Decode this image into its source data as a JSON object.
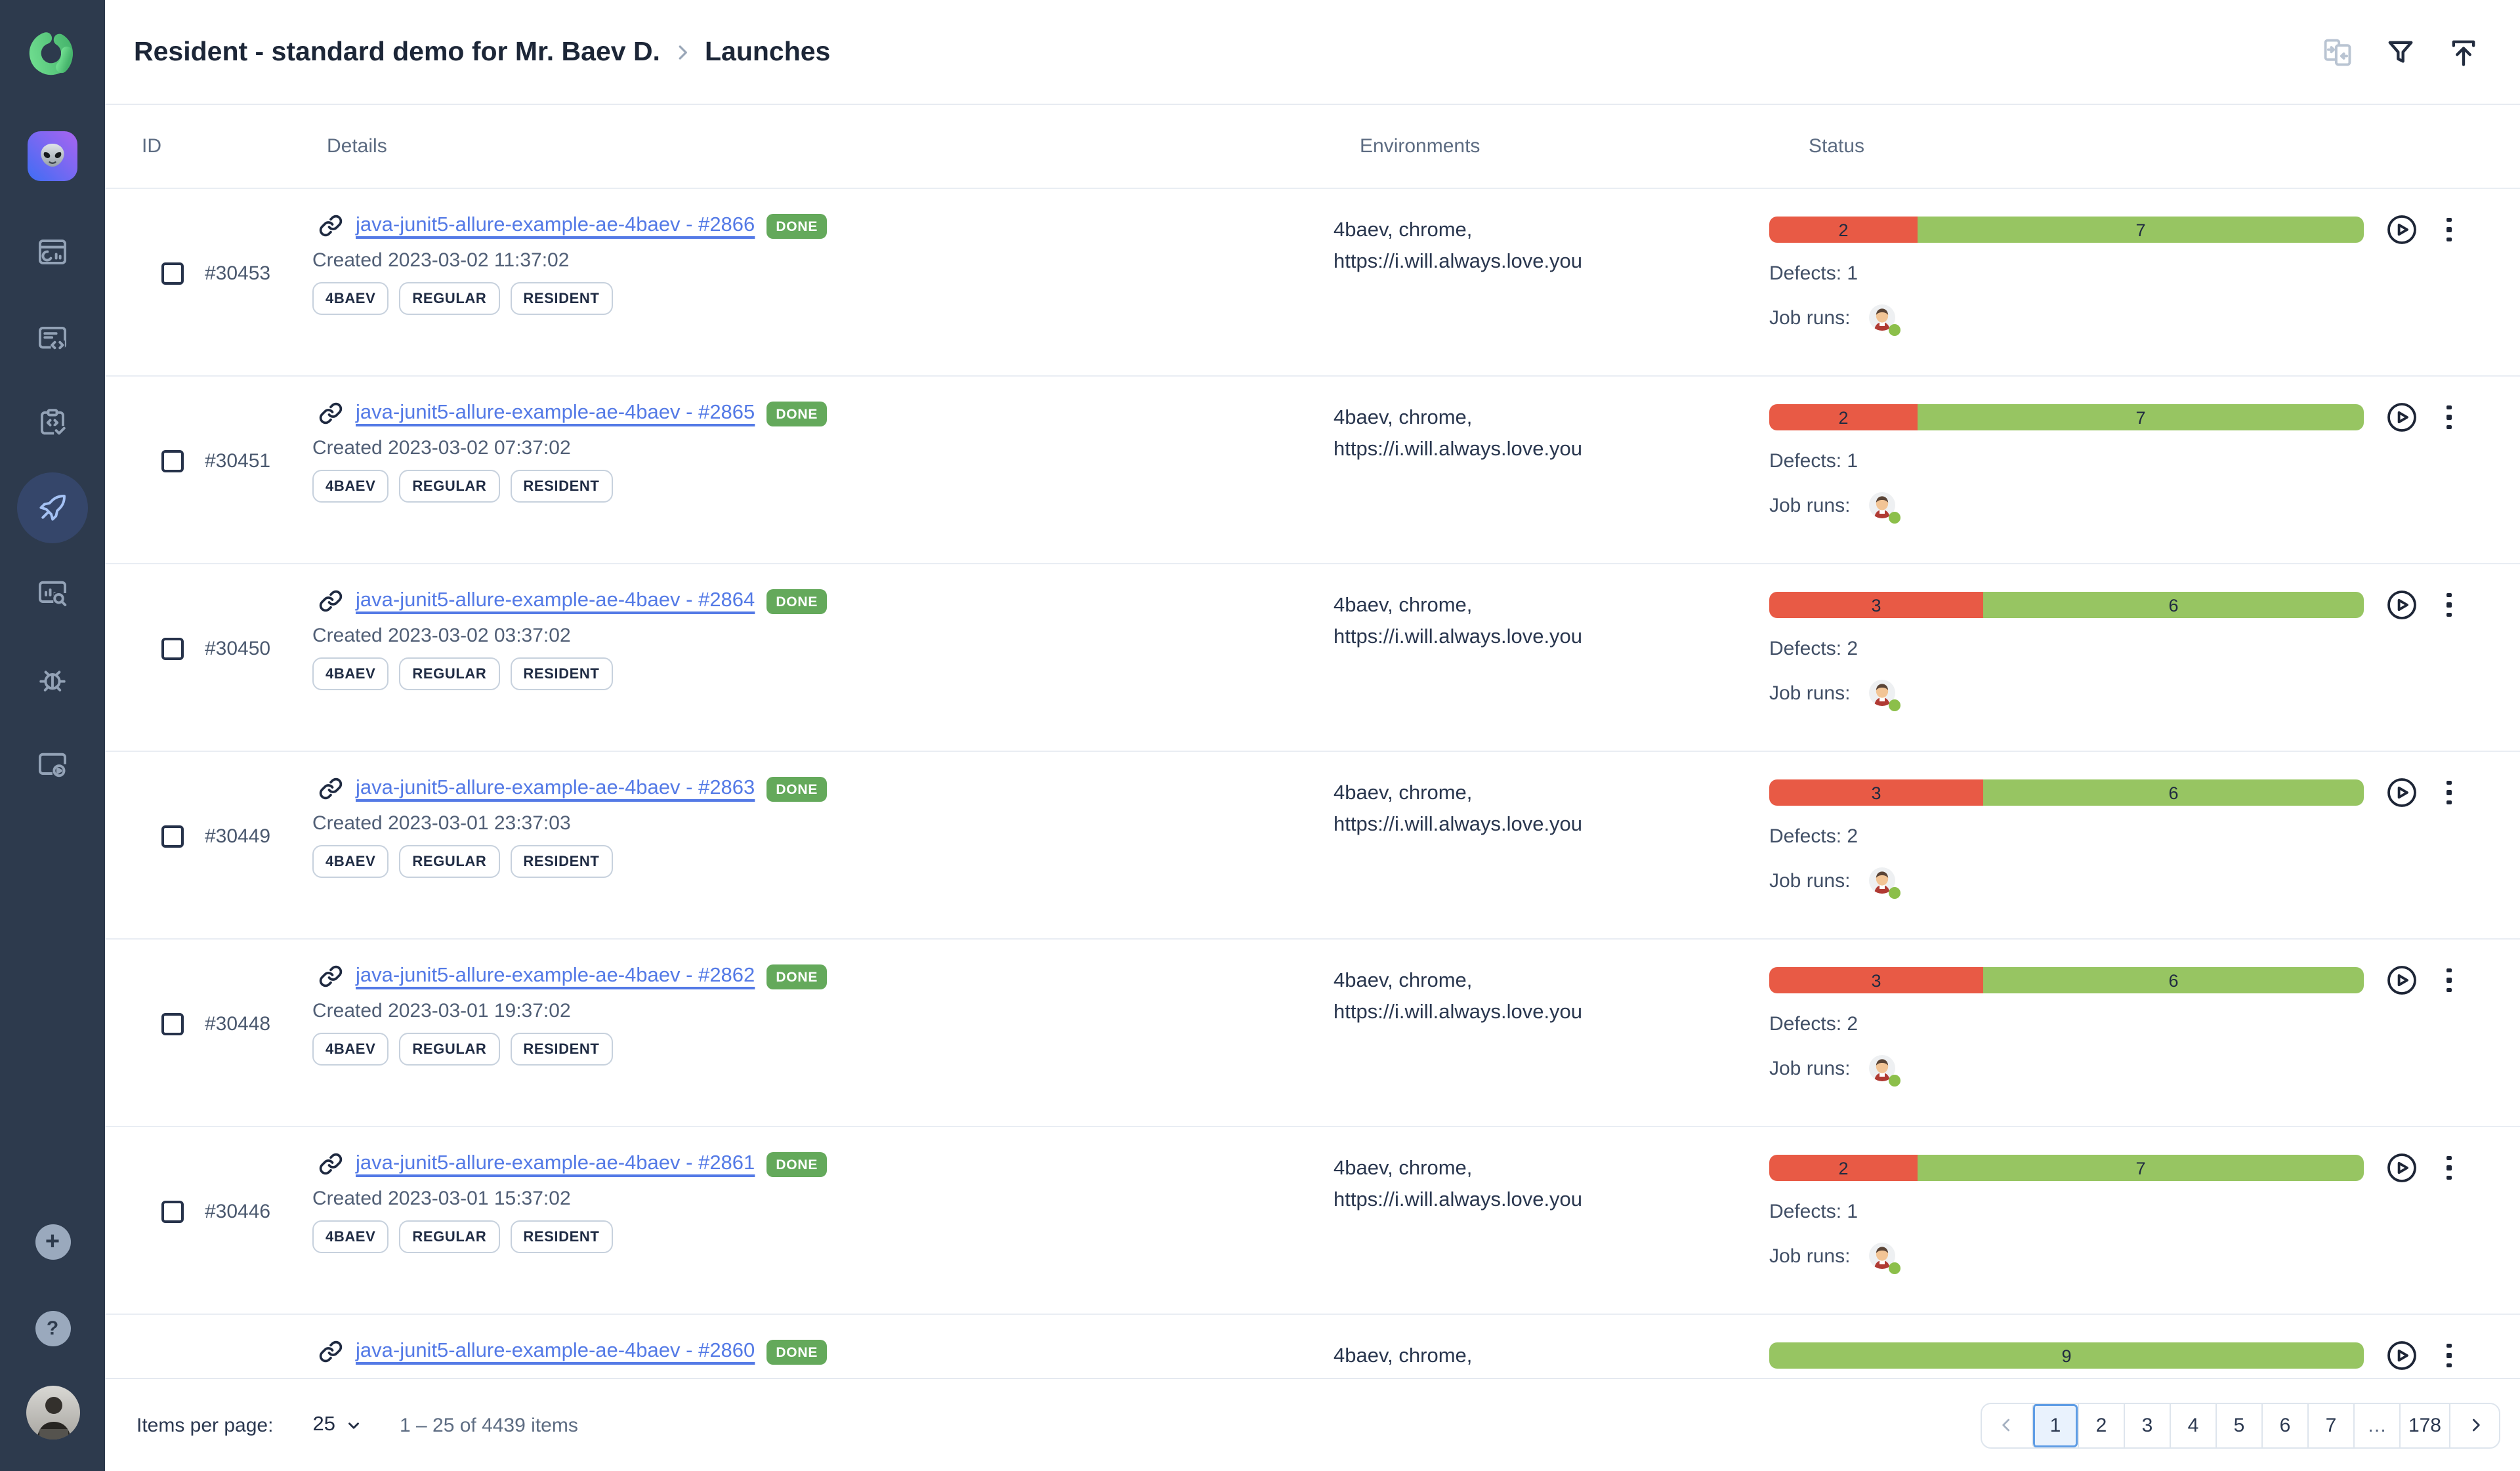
{
  "header": {
    "breadcrumb_project": "Resident - standard demo for Mr. Baev D.",
    "breadcrumb_page": "Launches"
  },
  "table": {
    "columns": {
      "id": "ID",
      "details": "Details",
      "environments": "Environments",
      "status": "Status"
    }
  },
  "labels": {
    "job_runs": "Job runs:"
  },
  "rows": [
    {
      "id": "#30453",
      "name": "java-junit5-allure-example-ae-4baev - #2866",
      "badge": "DONE",
      "created": "Created 2023-03-02 11:37:02",
      "tags": [
        "4BAEV",
        "REGULAR",
        "RESIDENT"
      ],
      "env": [
        "4baev, chrome,",
        "https://i.will.always.love.you"
      ],
      "failed": 2,
      "passed": 7,
      "defects": "Defects: 1"
    },
    {
      "id": "#30451",
      "name": "java-junit5-allure-example-ae-4baev - #2865",
      "badge": "DONE",
      "created": "Created 2023-03-02 07:37:02",
      "tags": [
        "4BAEV",
        "REGULAR",
        "RESIDENT"
      ],
      "env": [
        "4baev, chrome,",
        "https://i.will.always.love.you"
      ],
      "failed": 2,
      "passed": 7,
      "defects": "Defects: 1"
    },
    {
      "id": "#30450",
      "name": "java-junit5-allure-example-ae-4baev - #2864",
      "badge": "DONE",
      "created": "Created 2023-03-02 03:37:02",
      "tags": [
        "4BAEV",
        "REGULAR",
        "RESIDENT"
      ],
      "env": [
        "4baev, chrome,",
        "https://i.will.always.love.you"
      ],
      "failed": 3,
      "passed": 6,
      "defects": "Defects: 2"
    },
    {
      "id": "#30449",
      "name": "java-junit5-allure-example-ae-4baev - #2863",
      "badge": "DONE",
      "created": "Created 2023-03-01 23:37:03",
      "tags": [
        "4BAEV",
        "REGULAR",
        "RESIDENT"
      ],
      "env": [
        "4baev, chrome,",
        "https://i.will.always.love.you"
      ],
      "failed": 3,
      "passed": 6,
      "defects": "Defects: 2"
    },
    {
      "id": "#30448",
      "name": "java-junit5-allure-example-ae-4baev - #2862",
      "badge": "DONE",
      "created": "Created 2023-03-01 19:37:02",
      "tags": [
        "4BAEV",
        "REGULAR",
        "RESIDENT"
      ],
      "env": [
        "4baev, chrome,",
        "https://i.will.always.love.you"
      ],
      "failed": 3,
      "passed": 6,
      "defects": "Defects: 2"
    },
    {
      "id": "#30446",
      "name": "java-junit5-allure-example-ae-4baev - #2861",
      "badge": "DONE",
      "created": "Created 2023-03-01 15:37:02",
      "tags": [
        "4BAEV",
        "REGULAR",
        "RESIDENT"
      ],
      "env": [
        "4baev, chrome,",
        "https://i.will.always.love.you"
      ],
      "failed": 2,
      "passed": 7,
      "defects": "Defects: 1"
    },
    {
      "id": "",
      "name": "java-junit5-allure-example-ae-4baev - #2860",
      "badge": "DONE",
      "created": "",
      "tags": [],
      "env": [
        "4baev, chrome,"
      ],
      "failed": 0,
      "passed": 9,
      "defects": ""
    }
  ],
  "pagination": {
    "items_per_page_label": "Items per page:",
    "items_per_page_value": "25",
    "range": "1 – 25 of 4439 items",
    "pages": [
      "1",
      "2",
      "3",
      "4",
      "5",
      "6",
      "7",
      "…",
      "178"
    ],
    "active_page": "1"
  },
  "icons": {
    "topbar": [
      "merge-icon",
      "filter-icon",
      "upload-icon"
    ],
    "sidebar": [
      "allure-logo",
      "project-avatar-alien",
      "dashboards-icon",
      "test-cases-icon",
      "test-plans-icon",
      "launches-rocket-icon",
      "analytics-icon",
      "defects-bug-icon",
      "jobs-icon",
      "plus-icon",
      "help-icon",
      "user-avatar"
    ],
    "row": [
      "link-icon",
      "play-icon",
      "kebab-icon",
      "jenkins-avatar"
    ]
  },
  "colors": {
    "failed": "#e85a45",
    "passed": "#97c562",
    "badge": "#64a95b",
    "link": "#547ae6",
    "sidebar": "#2d3a4d",
    "active_nav": "#35466a"
  }
}
